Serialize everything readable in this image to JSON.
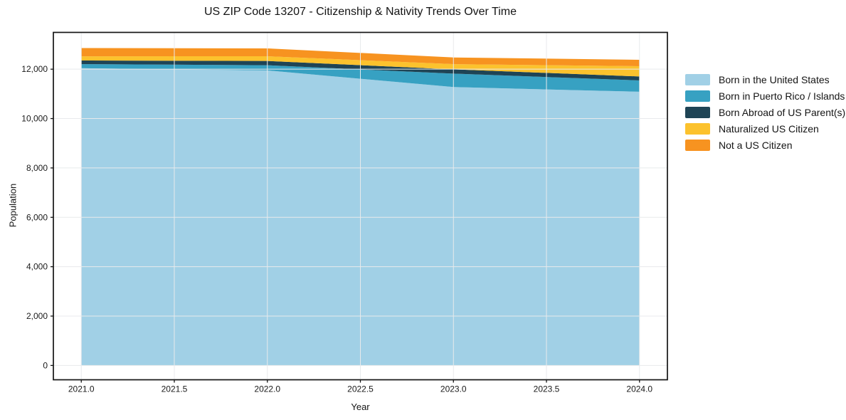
{
  "chart_data": {
    "type": "area",
    "stacked": true,
    "title": "US ZIP Code 13207 - Citizenship & Nativity Trends Over Time",
    "xlabel": "Year",
    "ylabel": "Population",
    "x": [
      2021,
      2022,
      2023,
      2024
    ],
    "series": [
      {
        "name": "Born in the United States",
        "color": "#a1d0e6",
        "values": [
          12040,
          11950,
          11275,
          11085
        ]
      },
      {
        "name": "Born in Puerto Rico / Islands",
        "color": "#37a1c2",
        "values": [
          165,
          210,
          545,
          460
        ]
      },
      {
        "name": "Born Abroad of US Parent(s)",
        "color": "#1f4455",
        "values": [
          145,
          175,
          175,
          160
        ]
      },
      {
        "name": "Naturalized US Citizen",
        "color": "#fcc22d",
        "values": [
          170,
          190,
          210,
          415
        ]
      },
      {
        "name": "Not a US Citizen",
        "color": "#f79320",
        "values": [
          335,
          315,
          270,
          260
        ]
      }
    ],
    "xlim": [
      2020.85,
      2024.15
    ],
    "ylim": [
      -580,
      13490
    ],
    "xticks": {
      "values": [
        2021,
        2021.5,
        2022,
        2022.5,
        2023,
        2023.5,
        2024
      ],
      "labels": [
        "2021.0",
        "2021.5",
        "2022.0",
        "2022.5",
        "2023.0",
        "2023.5",
        "2024.0"
      ]
    },
    "yticks": {
      "values": [
        0,
        2000,
        4000,
        6000,
        8000,
        10000,
        12000
      ],
      "labels": [
        "0",
        "2,000",
        "4,000",
        "6,000",
        "8,000",
        "10,000",
        "12,000"
      ]
    },
    "grid": true,
    "legend_position": "right-outside"
  },
  "colors": {
    "background": "#ffffff",
    "grid": "#e8eaec",
    "spine": "#141414",
    "tick_text": "#1a1a1a"
  }
}
